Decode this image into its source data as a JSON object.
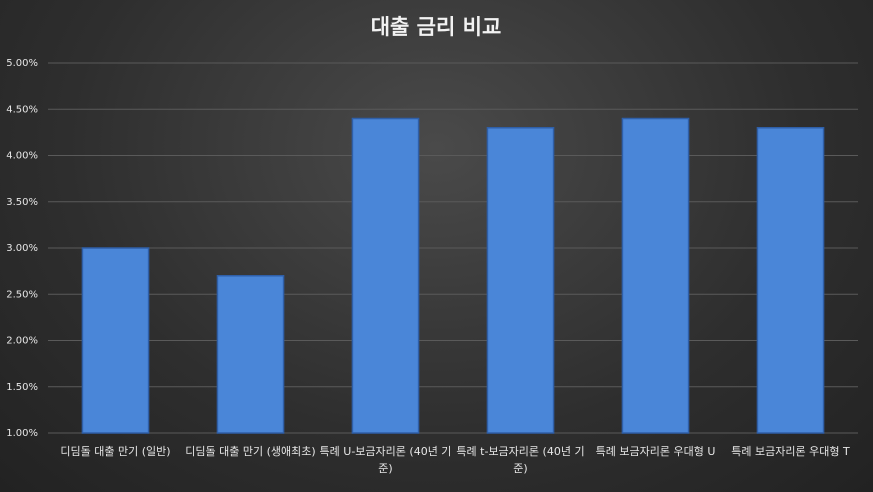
{
  "chart_data": {
    "type": "bar",
    "title": "대출 금리 비교",
    "categories": [
      "디딤돌 대출 만기 (일반)",
      "디딤돌 대출 만기 (생애최초)",
      "특례 U-보금자리론 (40년 기준)",
      "특례 t-보금자리론 (40년 기준)",
      "특례 보금자리론 우대형 U",
      "특례 보금자리론 우대형 T"
    ],
    "values": [
      3.0,
      2.7,
      4.4,
      4.3,
      4.4,
      4.3
    ],
    "color": "#4a86d8",
    "ylim": [
      1,
      5
    ],
    "yticks": [
      {
        "value": 1,
        "label": "1.00%"
      },
      {
        "value": 1.5,
        "label": "1.50%"
      },
      {
        "value": 2,
        "label": "2.00%"
      },
      {
        "value": 2.5,
        "label": "2.50%"
      },
      {
        "value": 3,
        "label": "3.00%"
      },
      {
        "value": 3.5,
        "label": "3.50%"
      },
      {
        "value": 4,
        "label": "4.00%"
      },
      {
        "value": 4.5,
        "label": "4.50%"
      },
      {
        "value": 5,
        "label": "5.00%"
      }
    ],
    "grid": true
  }
}
